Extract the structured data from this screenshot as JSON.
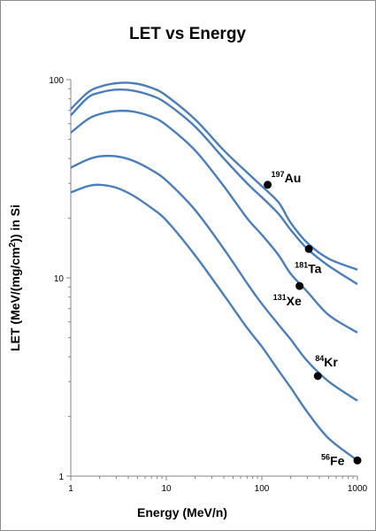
{
  "chart_data": {
    "type": "line",
    "title": "LET vs Energy",
    "xlabel": "Energy (MeV/n)",
    "ylabel_parts": [
      "LET (MeV/(mg/cm",
      "2",
      ")) in Si"
    ],
    "xscale": "log",
    "yscale": "log",
    "xlim": [
      1,
      1000
    ],
    "ylim": [
      1,
      100
    ],
    "x_ticks": [
      1,
      10,
      100,
      1000
    ],
    "y_ticks": [
      1,
      10,
      100
    ],
    "x_tick_labels": [
      "1",
      "10",
      "100",
      "1000"
    ],
    "y_tick_labels": [
      "1",
      "10",
      "100"
    ],
    "grid": false,
    "line_color": "#4a7ebb",
    "marker_color": "#000000",
    "series": [
      {
        "points": [
          [
            1,
            71
          ],
          [
            1.5,
            86
          ],
          [
            2,
            92
          ],
          [
            3,
            96
          ],
          [
            4.5,
            96
          ],
          [
            7,
            91
          ],
          [
            10,
            83
          ],
          [
            20,
            63
          ],
          [
            40,
            44
          ],
          [
            70,
            34
          ],
          [
            100,
            29
          ],
          [
            150,
            24
          ],
          [
            200,
            19
          ],
          [
            300,
            15
          ],
          [
            500,
            12.5
          ],
          [
            1000,
            11
          ]
        ],
        "marker": {
          "x": 115,
          "y": 29.5,
          "mass": "197",
          "symbol": "Au"
        }
      },
      {
        "points": [
          [
            1,
            66
          ],
          [
            1.5,
            81
          ],
          [
            2,
            86
          ],
          [
            3,
            89
          ],
          [
            4.5,
            88
          ],
          [
            7,
            83
          ],
          [
            10,
            76
          ],
          [
            20,
            58
          ],
          [
            40,
            40
          ],
          [
            70,
            30
          ],
          [
            100,
            25.5
          ],
          [
            150,
            21
          ],
          [
            200,
            17.5
          ],
          [
            300,
            14
          ],
          [
            500,
            11.5
          ],
          [
            1000,
            9.3
          ]
        ],
        "marker": {
          "x": 310,
          "y": 14,
          "mass": "181",
          "symbol": "Ta"
        }
      },
      {
        "points": [
          [
            1,
            54
          ],
          [
            1.5,
            63
          ],
          [
            2,
            67
          ],
          [
            3,
            69.5
          ],
          [
            4.5,
            69
          ],
          [
            7,
            65
          ],
          [
            10,
            59
          ],
          [
            20,
            44
          ],
          [
            40,
            29
          ],
          [
            70,
            20
          ],
          [
            100,
            16.5
          ],
          [
            150,
            13
          ],
          [
            200,
            10.5
          ],
          [
            300,
            8.5
          ],
          [
            500,
            6.5
          ],
          [
            1000,
            5.3
          ]
        ],
        "marker": {
          "x": 248,
          "y": 9.1,
          "mass": "131",
          "symbol": "Xe"
        }
      },
      {
        "points": [
          [
            1,
            36
          ],
          [
            1.5,
            39.5
          ],
          [
            2,
            41
          ],
          [
            3,
            41
          ],
          [
            4.5,
            39
          ],
          [
            7,
            35
          ],
          [
            10,
            31
          ],
          [
            20,
            22
          ],
          [
            40,
            14
          ],
          [
            70,
            9.4
          ],
          [
            100,
            7.4
          ],
          [
            150,
            5.8
          ],
          [
            200,
            4.9
          ],
          [
            300,
            3.8
          ],
          [
            500,
            3
          ],
          [
            1000,
            2.4
          ]
        ],
        "marker": {
          "x": 385,
          "y": 3.2,
          "mass": "84",
          "symbol": "Kr"
        }
      },
      {
        "points": [
          [
            1,
            27
          ],
          [
            1.5,
            29
          ],
          [
            2,
            29.5
          ],
          [
            3,
            28.5
          ],
          [
            4.5,
            26
          ],
          [
            7,
            22.5
          ],
          [
            10,
            19.5
          ],
          [
            20,
            13
          ],
          [
            40,
            8.2
          ],
          [
            70,
            5.6
          ],
          [
            100,
            4.5
          ],
          [
            150,
            3.4
          ],
          [
            200,
            2.8
          ],
          [
            300,
            2.1
          ],
          [
            500,
            1.55
          ],
          [
            1000,
            1.2
          ]
        ],
        "marker": {
          "x": 1000,
          "y": 1.2,
          "mass": "56",
          "symbol": "Fe"
        }
      }
    ]
  }
}
